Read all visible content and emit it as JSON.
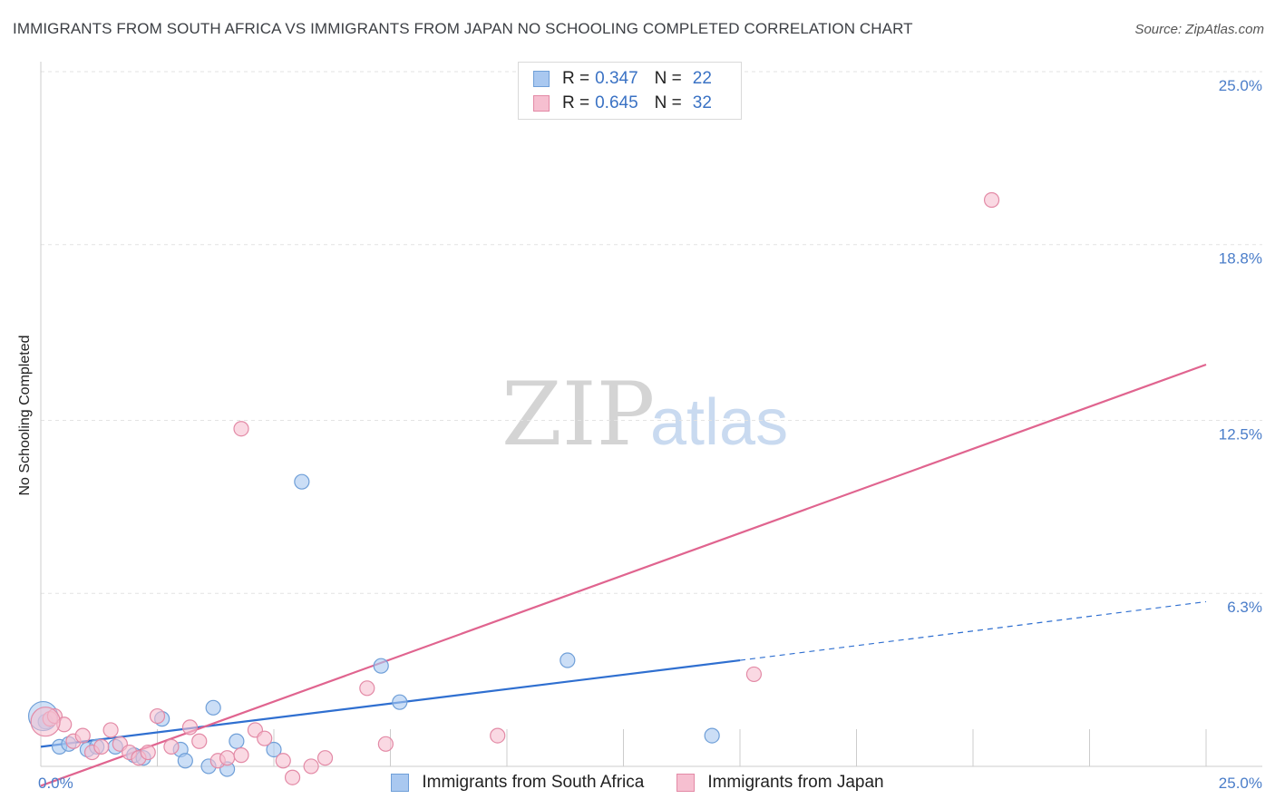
{
  "title": "IMMIGRANTS FROM SOUTH AFRICA VS IMMIGRANTS FROM JAPAN NO SCHOOLING COMPLETED CORRELATION CHART",
  "source": "Source: ZipAtlas.com",
  "watermark": {
    "zip": "ZIP",
    "atlas": "atlas"
  },
  "legend": {
    "rows": [
      {
        "r_label": "R =",
        "r_value": "0.347",
        "n_label": "N =",
        "n_value": "22",
        "color": "#a9c8f0",
        "border": "#6f9fd8"
      },
      {
        "r_label": "R =",
        "r_value": "0.645",
        "n_label": "N =",
        "n_value": "32",
        "color": "#f6bfd0",
        "border": "#e38aa6"
      }
    ]
  },
  "bottom_legend": [
    {
      "label": "Immigrants from South Africa",
      "color": "#a9c8f0",
      "border": "#6f9fd8"
    },
    {
      "label": "Immigrants from Japan",
      "color": "#f6bfd0",
      "border": "#e38aa6"
    }
  ],
  "chart_data": {
    "type": "scatter",
    "title": "IMMIGRANTS FROM SOUTH AFRICA VS IMMIGRANTS FROM JAPAN NO SCHOOLING COMPLETED CORRELATION CHART",
    "xlabel": "",
    "ylabel": "No Schooling Completed",
    "xlim": [
      0,
      25
    ],
    "ylim": [
      0,
      25
    ],
    "x_tick_labels": [
      {
        "value": 0,
        "label": "0.0%"
      },
      {
        "value": 25,
        "label": "25.0%"
      }
    ],
    "y_tick_labels": [
      {
        "value": 6.3,
        "label": "6.3%"
      },
      {
        "value": 12.5,
        "label": "12.5%"
      },
      {
        "value": 18.8,
        "label": "18.8%"
      },
      {
        "value": 25.0,
        "label": "25.0%"
      }
    ],
    "x_grid_values": [
      0,
      2.5,
      5,
      7.5,
      10,
      12.5,
      15,
      17.5,
      20,
      22.5,
      25
    ],
    "series": [
      {
        "name": "Immigrants from South Africa",
        "color": "#a9c8f0",
        "stroke": "#6f9fd8",
        "line_color": "#2f6fd0",
        "points": [
          [
            0.1,
            1.7
          ],
          [
            0.4,
            0.8
          ],
          [
            0.6,
            0.9
          ],
          [
            1.0,
            0.7
          ],
          [
            1.2,
            0.8
          ],
          [
            1.6,
            0.8
          ],
          [
            2.0,
            0.5
          ],
          [
            2.2,
            0.4
          ],
          [
            2.6,
            1.8
          ],
          [
            3.0,
            0.7
          ],
          [
            3.1,
            0.3
          ],
          [
            3.6,
            0.1
          ],
          [
            3.7,
            2.2
          ],
          [
            4.0,
            0.0
          ],
          [
            4.2,
            1.0
          ],
          [
            5.0,
            0.7
          ],
          [
            5.6,
            10.3
          ],
          [
            7.3,
            3.7
          ],
          [
            7.7,
            2.4
          ],
          [
            11.3,
            3.9
          ],
          [
            14.4,
            1.2
          ],
          [
            0.05,
            1.9
          ]
        ],
        "trend": {
          "x0": 0,
          "y0": 0.8,
          "x1": 15.0,
          "y1": 3.9,
          "dash_x1": 25,
          "dash_y1": 6.0
        }
      },
      {
        "name": "Immigrants from Japan",
        "color": "#f6bfd0",
        "stroke": "#e38aa6",
        "line_color": "#e0648f",
        "points": [
          [
            0.2,
            1.8
          ],
          [
            0.3,
            1.9
          ],
          [
            0.5,
            1.6
          ],
          [
            0.7,
            1.0
          ],
          [
            0.9,
            1.2
          ],
          [
            1.1,
            0.6
          ],
          [
            1.3,
            0.8
          ],
          [
            1.5,
            1.4
          ],
          [
            1.7,
            0.9
          ],
          [
            1.9,
            0.6
          ],
          [
            2.1,
            0.4
          ],
          [
            2.3,
            0.6
          ],
          [
            2.5,
            1.9
          ],
          [
            2.8,
            0.8
          ],
          [
            3.2,
            1.5
          ],
          [
            3.4,
            1.0
          ],
          [
            3.8,
            0.3
          ],
          [
            4.0,
            0.4
          ],
          [
            4.3,
            0.5
          ],
          [
            4.6,
            1.4
          ],
          [
            4.8,
            1.1
          ],
          [
            5.2,
            0.3
          ],
          [
            5.4,
            -0.3
          ],
          [
            5.8,
            0.1
          ],
          [
            6.1,
            0.4
          ],
          [
            4.3,
            12.2
          ],
          [
            7.0,
            2.9
          ],
          [
            7.4,
            0.9
          ],
          [
            9.8,
            1.2
          ],
          [
            15.3,
            3.4
          ],
          [
            20.4,
            20.4
          ],
          [
            0.1,
            1.7
          ]
        ],
        "trend": {
          "x0": 0,
          "y0": -0.6,
          "x1": 25,
          "y1": 14.5
        }
      }
    ]
  }
}
